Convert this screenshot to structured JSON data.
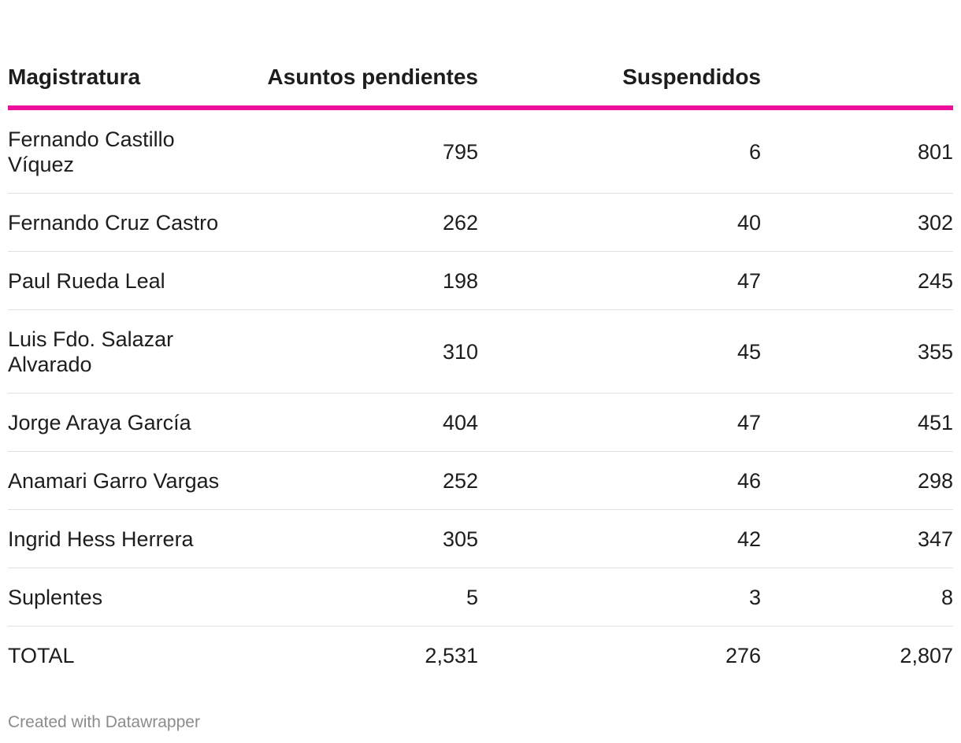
{
  "chart_data": {
    "type": "table",
    "columns": [
      "Magistratura",
      "Asuntos pendientes",
      "Suspendidos",
      ""
    ],
    "rows": [
      {
        "name": "Fernando Castillo Víquez",
        "pendientes": "795",
        "suspendidos": "6",
        "total": "801"
      },
      {
        "name": "Fernando Cruz Castro",
        "pendientes": "262",
        "suspendidos": "40",
        "total": "302"
      },
      {
        "name": "Paul Rueda Leal",
        "pendientes": "198",
        "suspendidos": "47",
        "total": "245"
      },
      {
        "name": "Luis Fdo. Salazar Alvarado",
        "pendientes": "310",
        "suspendidos": "45",
        "total": "355"
      },
      {
        "name": "Jorge Araya García",
        "pendientes": "404",
        "suspendidos": "47",
        "total": "451"
      },
      {
        "name": "Anamari Garro Vargas",
        "pendientes": "252",
        "suspendidos": "46",
        "total": "298"
      },
      {
        "name": "Ingrid Hess Herrera",
        "pendientes": "305",
        "suspendidos": "42",
        "total": "347"
      },
      {
        "name": "Suplentes",
        "pendientes": "5",
        "suspendidos": "3",
        "total": "8"
      },
      {
        "name": "TOTAL",
        "pendientes": "2,531",
        "suspendidos": "276",
        "total": "2,807"
      }
    ],
    "header_rule_color": "#ee0e9c"
  },
  "footer": {
    "credit": "Created with Datawrapper"
  }
}
